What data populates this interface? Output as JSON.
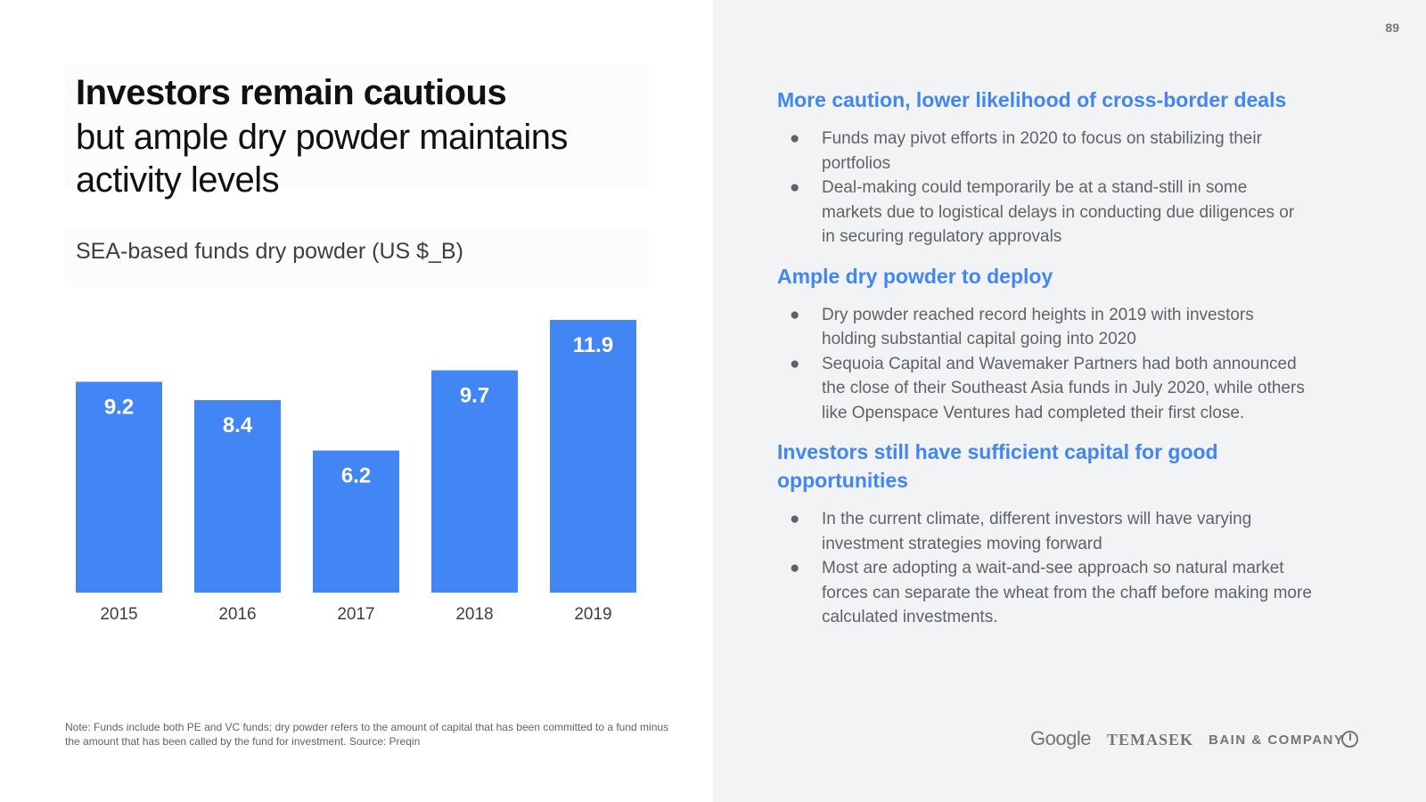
{
  "page_number": "89",
  "title": {
    "bold": "Investors remain cautious",
    "rest": "but ample dry powder maintains activity levels"
  },
  "chart_subtitle": "SEA-based funds dry powder (US $_B)",
  "chart_data": {
    "type": "bar",
    "title": "SEA-based funds dry powder (US $_B)",
    "categories": [
      "2015",
      "2016",
      "2017",
      "2018",
      "2019"
    ],
    "values": [
      9.2,
      8.4,
      6.2,
      9.7,
      11.9
    ],
    "value_labels": [
      "9.2",
      "8.4",
      "6.2",
      "9.7",
      "11.9"
    ],
    "xlabel": "",
    "ylabel": "",
    "ylim": [
      0,
      11.9
    ],
    "grid": false,
    "bar_color": "#4285f4"
  },
  "note": "Note: Funds include both PE and VC funds; dry powder refers to the amount of capital that has been committed to a fund minus the amount that has been called by the fund for investment.  Source: Preqin",
  "sections": [
    {
      "heading": "More caution, lower likelihood of cross-border deals",
      "bullets": [
        "Funds may pivot efforts in 2020 to focus on stabilizing their portfolios",
        "Deal-making could temporarily be at a stand-still in some markets due to logistical delays in conducting due diligences or in securing regulatory approvals"
      ]
    },
    {
      "heading": "Ample dry powder to deploy",
      "bullets": [
        "Dry powder reached record heights in 2019 with investors holding substantial capital going into 2020",
        "Sequoia Capital and Wavemaker Partners had both announced the close of their Southeast Asia funds in July 2020, while others like Openspace Ventures had completed their first close."
      ]
    },
    {
      "heading": "Investors still have sufficient capital for good opportunities",
      "bullets": [
        "In the current climate, different investors will have varying investment strategies moving forward",
        "Most are adopting a wait-and-see approach so natural market forces can separate the wheat from the chaff before making more calculated investments."
      ]
    }
  ],
  "bullet_symbol": "●",
  "logos": {
    "google": "Google",
    "temasek": "TEMASEK",
    "bain": "BAIN & COMPANY"
  },
  "colors": {
    "accent": "#4285f4",
    "right_panel_bg": "#f1f3f4"
  }
}
